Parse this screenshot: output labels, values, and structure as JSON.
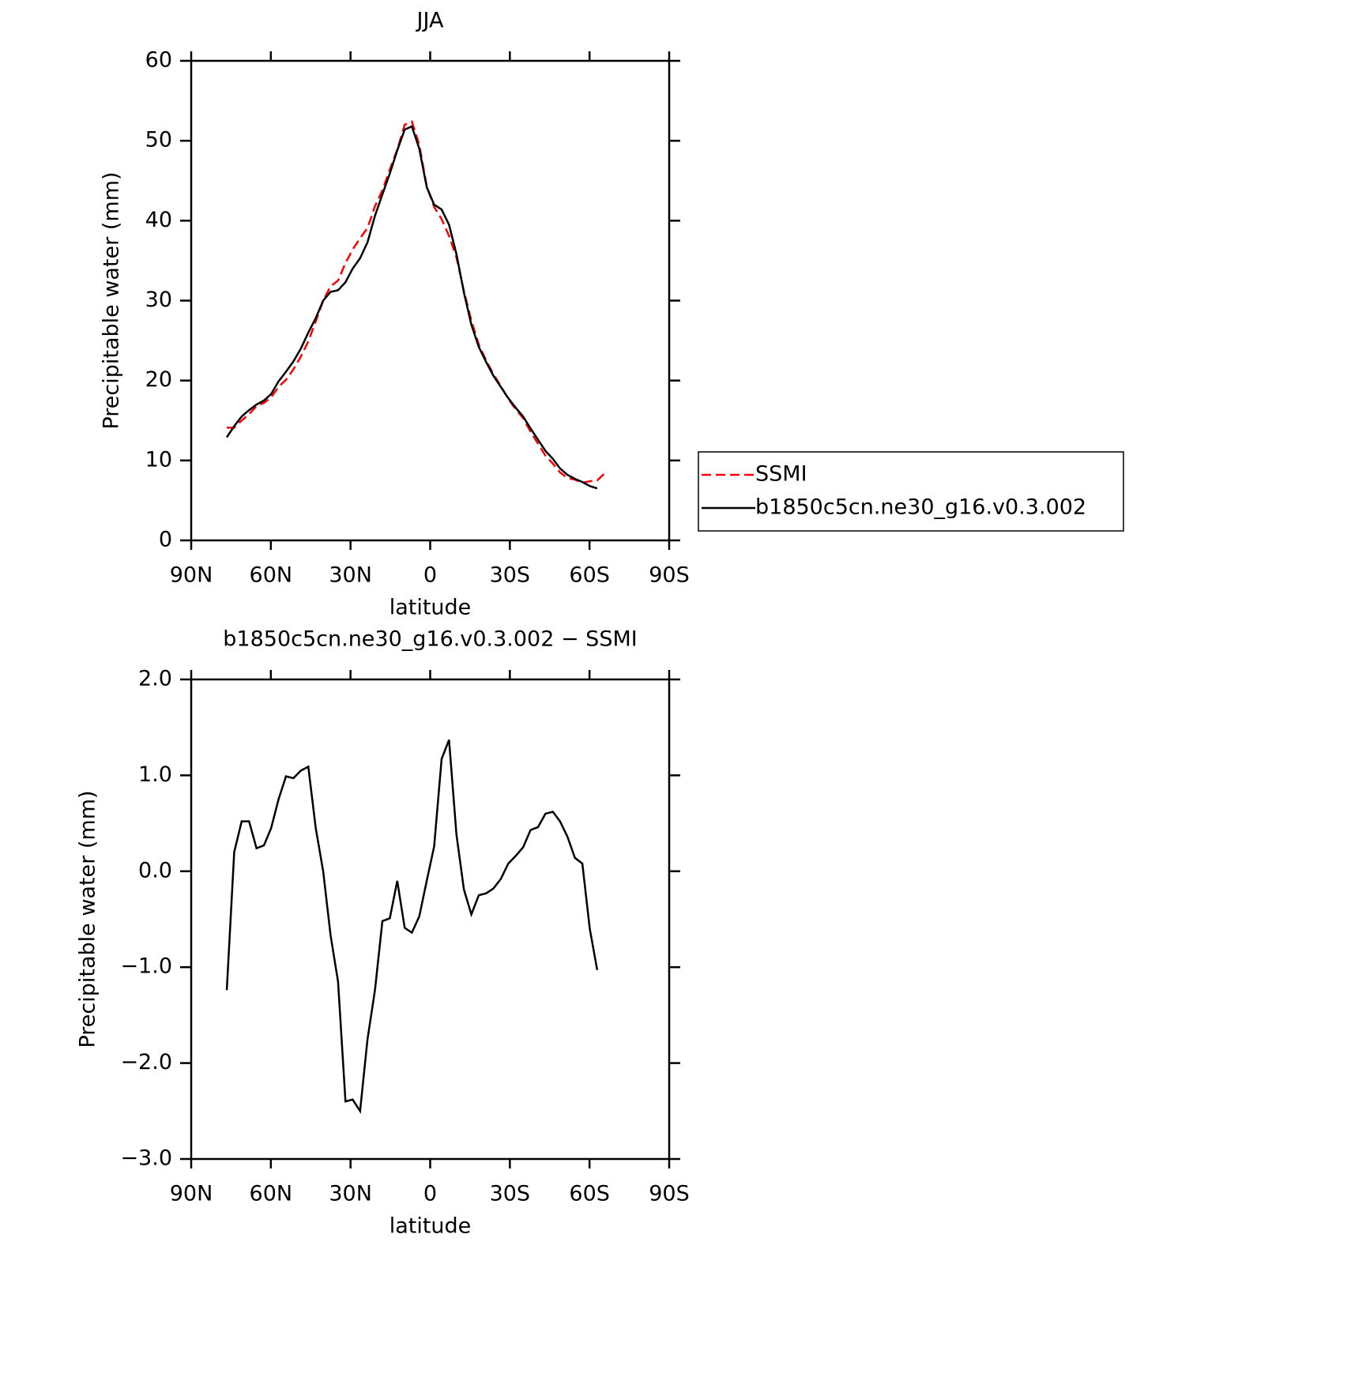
{
  "chart_data": [
    {
      "type": "line",
      "title": "JJA",
      "xlabel": "latitude",
      "ylabel": "Precipitable water (mm)",
      "x": [
        76.6,
        73.8,
        71.0,
        68.2,
        65.4,
        62.6,
        59.9,
        57.1,
        54.3,
        51.5,
        48.7,
        45.9,
        43.1,
        40.3,
        37.5,
        34.7,
        31.9,
        29.2,
        26.4,
        23.6,
        20.8,
        18.0,
        15.2,
        12.4,
        9.6,
        6.9,
        4.1,
        1.3,
        -1.5,
        -4.3,
        -7.1,
        -9.9,
        -12.7,
        -15.5,
        -18.3,
        -21.1,
        -23.8,
        -26.6,
        -29.4,
        -32.2,
        -35.0,
        -37.8,
        -40.6,
        -43.4,
        -46.2,
        -48.9,
        -51.7,
        -54.5,
        -57.3,
        -60.1,
        -62.9,
        -65.7
      ],
      "series": [
        {
          "name": "SSMI",
          "color": "#ff0000",
          "linestyle": "dashed",
          "values": [
            14.1,
            14.1,
            15.0,
            15.8,
            16.8,
            17.2,
            17.9,
            19.2,
            20.1,
            21.4,
            23.0,
            24.9,
            27.4,
            30.0,
            31.8,
            32.5,
            34.7,
            36.4,
            37.8,
            39.1,
            41.8,
            43.8,
            46.4,
            48.9,
            52.0,
            52.4,
            49.5,
            44.3,
            41.7,
            40.2,
            38.1,
            35.4,
            31.2,
            27.5,
            24.5,
            22.5,
            20.8,
            19.3,
            17.7,
            16.4,
            15.3,
            13.6,
            12.1,
            10.6,
            9.6,
            8.5,
            7.8,
            7.6,
            7.2,
            7.4,
            7.5,
            8.4
          ]
        },
        {
          "name": "b1850c5cn.ne30_g16.v0.3.002",
          "color": "#000000",
          "linestyle": "solid",
          "values": [
            12.9,
            14.3,
            15.5,
            16.3,
            17.0,
            17.5,
            18.3,
            19.9,
            21.1,
            22.4,
            24.0,
            26.0,
            27.8,
            30.0,
            31.1,
            31.3,
            32.3,
            34.0,
            35.3,
            37.3,
            40.6,
            43.3,
            45.9,
            48.8,
            51.4,
            51.8,
            49.0,
            44.2,
            42.0,
            41.4,
            39.5,
            35.8,
            31.0,
            27.0,
            24.2,
            22.3,
            20.6,
            19.2,
            17.8,
            16.6,
            15.5,
            14.0,
            12.6,
            11.2,
            10.2,
            9.0,
            8.2,
            7.7,
            7.3,
            6.8,
            6.5,
            null
          ]
        }
      ],
      "xlim": [
        90,
        -90
      ],
      "xticks": [
        {
          "value": 90,
          "label": "90N"
        },
        {
          "value": 60,
          "label": "60N"
        },
        {
          "value": 30,
          "label": "30N"
        },
        0,
        {
          "value": -30,
          "label": "30S"
        },
        {
          "value": -60,
          "label": "60S"
        },
        {
          "value": -90,
          "label": "90S"
        }
      ],
      "ylim": [
        0,
        60
      ],
      "yticks": [
        0,
        10,
        20,
        30,
        40,
        50,
        60
      ],
      "legend": "right"
    },
    {
      "type": "line",
      "title": "b1850c5cn.ne30_g16.v0.3.002 − SSMI",
      "xlabel": "latitude",
      "ylabel": "Precipitable water (mm)",
      "x": [
        76.6,
        73.8,
        71.0,
        68.2,
        65.4,
        62.6,
        59.9,
        57.1,
        54.3,
        51.5,
        48.7,
        45.9,
        43.1,
        40.3,
        37.5,
        34.7,
        31.9,
        29.2,
        26.4,
        23.6,
        20.8,
        18.0,
        15.2,
        12.4,
        9.6,
        6.9,
        4.1,
        1.3,
        -1.5,
        -4.3,
        -7.1,
        -9.9,
        -12.7,
        -15.5,
        -18.3,
        -21.1,
        -23.8,
        -26.6,
        -29.4,
        -32.2,
        -35.0,
        -37.8,
        -40.6,
        -43.4,
        -46.2,
        -48.9,
        -51.7,
        -54.5,
        -57.3,
        -60.1,
        -62.9
      ],
      "series": [
        {
          "color": "#000000",
          "linestyle": "solid",
          "values": [
            -1.24,
            0.2,
            0.52,
            0.52,
            0.24,
            0.27,
            0.45,
            0.75,
            0.99,
            0.97,
            1.05,
            1.09,
            0.45,
            0.0,
            -0.67,
            -1.15,
            -2.4,
            -2.38,
            -2.5,
            -1.75,
            -1.24,
            -0.52,
            -0.49,
            -0.1,
            -0.59,
            -0.64,
            -0.47,
            -0.1,
            0.26,
            1.17,
            1.37,
            0.38,
            -0.19,
            -0.45,
            -0.25,
            -0.23,
            -0.18,
            -0.08,
            0.08,
            0.16,
            0.25,
            0.43,
            0.46,
            0.6,
            0.62,
            0.52,
            0.36,
            0.14,
            0.08,
            -0.6,
            -1.03
          ]
        }
      ],
      "xlim": [
        90,
        -90
      ],
      "xticks": [
        {
          "value": 90,
          "label": "90N"
        },
        {
          "value": 60,
          "label": "60N"
        },
        {
          "value": 30,
          "label": "30N"
        },
        0,
        {
          "value": -30,
          "label": "30S"
        },
        {
          "value": -60,
          "label": "60S"
        },
        {
          "value": -90,
          "label": "90S"
        }
      ],
      "ylim": [
        -3,
        2
      ],
      "yticks": [
        {
          "value": -3,
          "label": "−3.0"
        },
        {
          "value": -2,
          "label": "−2.0"
        },
        {
          "value": -1,
          "label": "−1.0"
        },
        {
          "value": 0,
          "label": "0.0"
        },
        {
          "value": 1,
          "label": "1.0"
        },
        {
          "value": 2,
          "label": "2.0"
        }
      ]
    }
  ]
}
